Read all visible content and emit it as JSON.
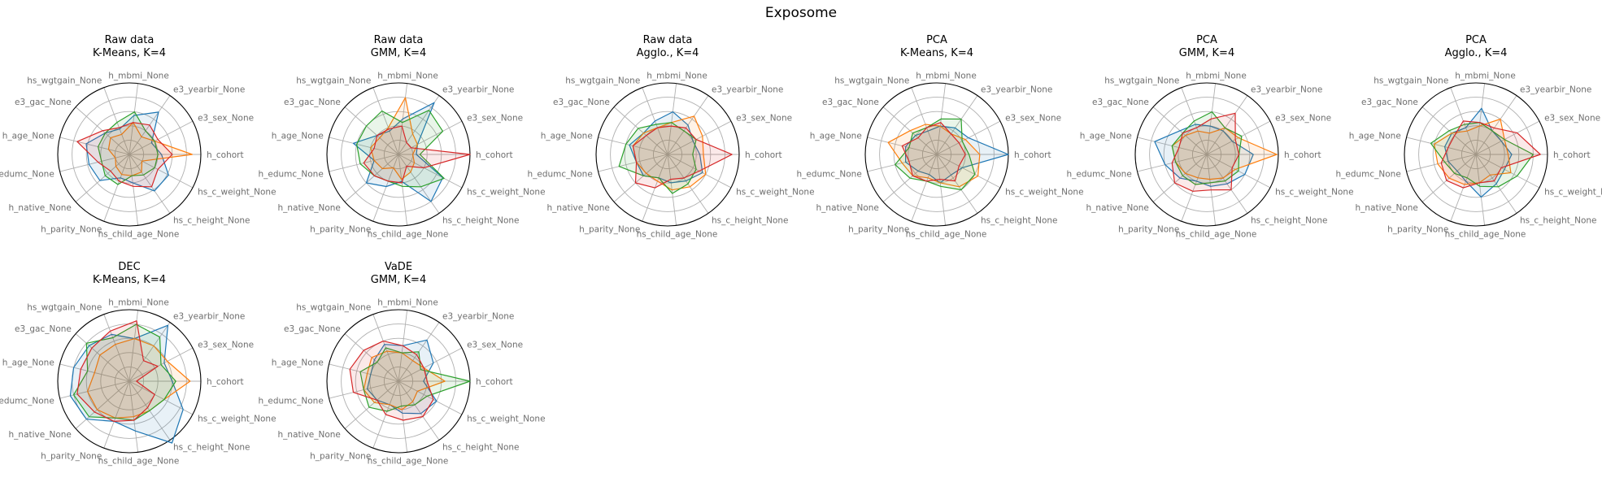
{
  "figure": {
    "title": "Exposome"
  },
  "chart_data": {
    "type": "radar",
    "axes": [
      "h_cohort",
      "hs_c_weight_None",
      "hs_c_height_None",
      "hs_child_age_None",
      "h_parity_None",
      "h_native_None",
      "h_edumc_None",
      "h_age_None",
      "e3_gac_None",
      "hs_wgtgain_None",
      "h_mbmi_None",
      "e3_yearbir_None",
      "e3_sex_None"
    ],
    "series_colors": [
      "#1f77b4",
      "#ff7f0e",
      "#2ca02c",
      "#d62728"
    ],
    "grid_levels": [
      0.2,
      0.4,
      0.6,
      0.8
    ],
    "subplots": [
      {
        "title": [
          "Raw data",
          "K-Means, K=4"
        ],
        "values": [
          [
            0.45,
            0.62,
            0.62,
            0.4,
            0.35,
            0.55,
            0.58,
            0.62,
            0.45,
            0.38,
            0.55,
            0.72,
            0.35
          ],
          [
            0.88,
            0.2,
            0.3,
            0.3,
            0.3,
            0.25,
            0.2,
            0.3,
            0.35,
            0.3,
            0.45,
            0.3,
            0.4
          ],
          [
            0.4,
            0.4,
            0.35,
            0.3,
            0.45,
            0.45,
            0.4,
            0.45,
            0.45,
            0.48,
            0.6,
            0.4,
            0.4
          ],
          [
            0.6,
            0.45,
            0.55,
            0.45,
            0.4,
            0.35,
            0.45,
            0.75,
            0.5,
            0.4,
            0.45,
            0.5,
            0.45
          ]
        ]
      },
      {
        "title": [
          "Raw data",
          "GMM, K=4"
        ],
        "values": [
          [
            0.25,
            0.7,
            0.8,
            0.38,
            0.48,
            0.6,
            0.35,
            0.65,
            0.4,
            0.35,
            0.5,
            0.88,
            0.3
          ],
          [
            0.2,
            0.25,
            0.3,
            0.35,
            0.2,
            0.3,
            0.35,
            0.4,
            0.35,
            0.4,
            0.8,
            0.35,
            0.3
          ],
          [
            0.3,
            0.72,
            0.55,
            0.45,
            0.4,
            0.45,
            0.55,
            0.6,
            0.6,
            0.65,
            0.45,
            0.75,
            0.7
          ],
          [
            1.0,
            0.4,
            0.2,
            0.4,
            0.4,
            0.45,
            0.5,
            0.35,
            0.4,
            0.38,
            0.4,
            0.2,
            0.2
          ]
        ]
      },
      {
        "title": [
          "Raw data",
          "Agglo., K=4"
        ],
        "values": [
          [
            0.45,
            0.55,
            0.45,
            0.4,
            0.35,
            0.45,
            0.45,
            0.55,
            0.45,
            0.5,
            0.6,
            0.5,
            0.4
          ],
          [
            0.5,
            0.6,
            0.55,
            0.5,
            0.4,
            0.4,
            0.45,
            0.5,
            0.45,
            0.4,
            0.45,
            0.65,
            0.55
          ],
          [
            0.35,
            0.45,
            0.5,
            0.55,
            0.35,
            0.45,
            0.7,
            0.6,
            0.55,
            0.45,
            0.45,
            0.4,
            0.45
          ],
          [
            0.9,
            0.5,
            0.4,
            0.35,
            0.5,
            0.6,
            0.45,
            0.5,
            0.4,
            0.4,
            0.4,
            0.45,
            0.45
          ]
        ]
      },
      {
        "title": [
          "PCA",
          "K-Means, K=4"
        ],
        "values": [
          [
            1.0,
            0.4,
            0.35,
            0.4,
            0.3,
            0.35,
            0.45,
            0.45,
            0.4,
            0.35,
            0.4,
            0.45,
            0.5
          ],
          [
            0.6,
            0.65,
            0.55,
            0.4,
            0.35,
            0.45,
            0.5,
            0.7,
            0.5,
            0.45,
            0.4,
            0.35,
            0.45
          ],
          [
            0.45,
            0.6,
            0.6,
            0.45,
            0.4,
            0.5,
            0.6,
            0.4,
            0.45,
            0.4,
            0.5,
            0.6,
            0.4
          ],
          [
            0.4,
            0.35,
            0.45,
            0.35,
            0.4,
            0.45,
            0.4,
            0.5,
            0.35,
            0.4,
            0.45,
            0.35,
            0.35
          ]
        ]
      },
      {
        "title": [
          "PCA",
          "GMM, K=4"
        ],
        "values": [
          [
            0.65,
            0.6,
            0.5,
            0.45,
            0.4,
            0.5,
            0.6,
            0.75,
            0.5,
            0.45,
            0.4,
            0.4,
            0.4
          ],
          [
            0.98,
            0.45,
            0.4,
            0.35,
            0.35,
            0.4,
            0.45,
            0.5,
            0.4,
            0.35,
            0.3,
            0.45,
            0.5
          ],
          [
            0.45,
            0.5,
            0.45,
            0.4,
            0.45,
            0.45,
            0.45,
            0.5,
            0.45,
            0.5,
            0.6,
            0.45,
            0.55
          ],
          [
            0.45,
            0.4,
            0.6,
            0.5,
            0.55,
            0.6,
            0.5,
            0.4,
            0.45,
            0.4,
            0.5,
            0.7,
            0.45
          ]
        ]
      },
      {
        "title": [
          "PCA",
          "Agglo., K=4"
        ],
        "values": [
          [
            0.5,
            0.45,
            0.5,
            0.6,
            0.4,
            0.35,
            0.4,
            0.45,
            0.45,
            0.4,
            0.65,
            0.4,
            0.4
          ],
          [
            0.45,
            0.55,
            0.35,
            0.4,
            0.45,
            0.5,
            0.55,
            0.6,
            0.45,
            0.35,
            0.4,
            0.6,
            0.45
          ],
          [
            0.8,
            0.65,
            0.55,
            0.45,
            0.35,
            0.4,
            0.45,
            0.65,
            0.5,
            0.45,
            0.45,
            0.4,
            0.45
          ],
          [
            0.9,
            0.4,
            0.45,
            0.4,
            0.5,
            0.55,
            0.5,
            0.4,
            0.4,
            0.5,
            0.45,
            0.45,
            0.65
          ]
        ]
      },
      {
        "title": [
          "DEC",
          "K-Means, K=4"
        ],
        "values": [
          [
            0.6,
            0.85,
            1.05,
            0.7,
            0.6,
            0.8,
            0.85,
            0.8,
            0.75,
            0.7,
            0.6,
            0.95,
            0.55
          ],
          [
            0.85,
            0.55,
            0.5,
            0.5,
            0.55,
            0.6,
            0.6,
            0.5,
            0.55,
            0.55,
            0.6,
            0.6,
            0.6
          ],
          [
            0.65,
            0.55,
            0.5,
            0.55,
            0.55,
            0.75,
            0.8,
            0.6,
            0.8,
            0.65,
            0.8,
            0.75,
            0.5
          ],
          [
            0.1,
            0.4,
            0.45,
            0.55,
            0.6,
            0.65,
            0.75,
            0.7,
            0.7,
            0.75,
            0.85,
            0.35,
            0.45
          ]
        ]
      },
      {
        "title": [
          "VaDE",
          "GMM, K=4"
        ],
        "values": [
          [
            0.35,
            0.6,
            0.55,
            0.45,
            0.35,
            0.4,
            0.45,
            0.4,
            0.45,
            0.55,
            0.5,
            0.7,
            0.55
          ],
          [
            0.65,
            0.3,
            0.35,
            0.4,
            0.35,
            0.45,
            0.5,
            0.45,
            0.5,
            0.45,
            0.4,
            0.35,
            0.4
          ],
          [
            1.0,
            0.45,
            0.4,
            0.35,
            0.45,
            0.55,
            0.5,
            0.55,
            0.4,
            0.5,
            0.4,
            0.5,
            0.35
          ],
          [
            0.4,
            0.55,
            0.6,
            0.55,
            0.5,
            0.4,
            0.65,
            0.7,
            0.65,
            0.6,
            0.5,
            0.45,
            0.4
          ]
        ]
      }
    ]
  }
}
